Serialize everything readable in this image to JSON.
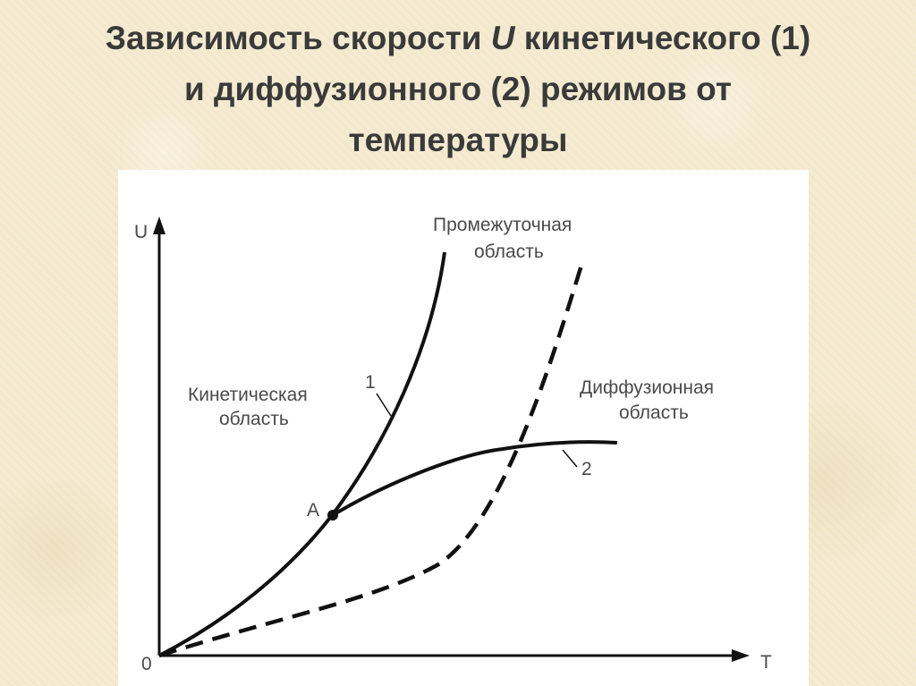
{
  "slide": {
    "title_part1": "Зависимость скорости ",
    "title_symbol": "U",
    "title_part2": " кинетического (1)",
    "title_line2": "и диффузионного (2) режимов от",
    "title_line3": "температуры"
  },
  "diagram": {
    "axis_y_label": "U",
    "axis_x_label": "T",
    "origin_label": "0",
    "point_label": "A",
    "curve1_label": "1",
    "curve2_label": "2",
    "region_kinetic_line1": "Кинетическая",
    "region_kinetic_line2": "область",
    "region_intermediate_line1": "Промежуточная",
    "region_intermediate_line2": "область",
    "region_diffusion_line1": "Диффузионная",
    "region_diffusion_line2": "область",
    "line_color": "#111111",
    "text_color": "#4a4a4a"
  }
}
